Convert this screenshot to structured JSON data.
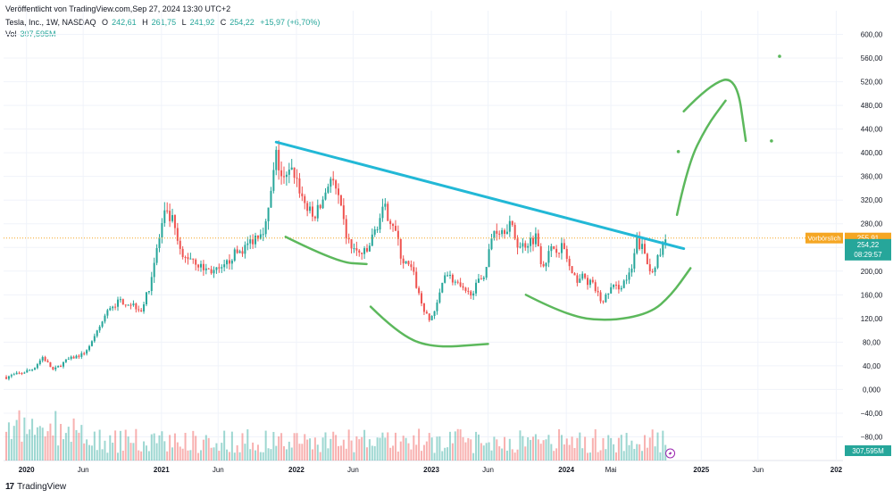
{
  "header": {
    "published": "Veröffentlicht von TradingView.com,Sep 27, 2024 13:30 UTC+2",
    "symbol": "Tesla, Inc., 1W, NASDAQ",
    "o_label": "O",
    "o_value": "242,61",
    "h_label": "H",
    "h_value": "261,75",
    "l_label": "L",
    "l_value": "241,92",
    "c_label": "C",
    "c_value": "254,22",
    "change": "+15,97 (+6,70%)",
    "vol_label": "Vol",
    "vol_value": "307,595M"
  },
  "footer": {
    "brand": "TradingView",
    "logo_glyph": "17"
  },
  "colors": {
    "up": "#26a69a",
    "down": "#ef5350",
    "trendline": "#22b8d6",
    "drawing": "#5cb85c",
    "prevclose": "#f5a623"
  },
  "chart_data": {
    "type": "candlestick",
    "title": "Tesla, Inc., 1W, NASDAQ",
    "y_ticks": [
      "600,00",
      "560,00",
      "520,00",
      "480,00",
      "440,00",
      "400,00",
      "360,00",
      "320,00",
      "280,00",
      "240,00",
      "200,00",
      "160,00",
      "120,00",
      "80,00",
      "40,00",
      "0,000",
      "−40,00",
      "−80,00"
    ],
    "y_tick_values": [
      600,
      560,
      520,
      480,
      440,
      400,
      360,
      320,
      280,
      240,
      200,
      160,
      120,
      80,
      40,
      0,
      -40,
      -80
    ],
    "ylim": [
      -120,
      640
    ],
    "x_ticks": [
      "2020",
      "Jun",
      "2021",
      "Jun",
      "2022",
      "Jun",
      "2023",
      "Jun",
      "2024",
      "Mai",
      "2025",
      "Jun",
      "202"
    ],
    "x_tick_years": [
      2020.0,
      2020.42,
      2021.0,
      2021.42,
      2022.0,
      2022.42,
      2023.0,
      2023.42,
      2024.0,
      2024.33,
      2025.0,
      2025.42,
      2026.0
    ],
    "xlim": [
      2019.83,
      2026.05
    ],
    "price_path": [
      [
        2019.85,
        21
      ],
      [
        2019.95,
        27
      ],
      [
        2020.05,
        35
      ],
      [
        2020.12,
        55
      ],
      [
        2020.2,
        32
      ],
      [
        2020.3,
        50
      ],
      [
        2020.42,
        60
      ],
      [
        2020.5,
        85
      ],
      [
        2020.55,
        110
      ],
      [
        2020.62,
        140
      ],
      [
        2020.7,
        150
      ],
      [
        2020.78,
        145
      ],
      [
        2020.85,
        135
      ],
      [
        2020.9,
        165
      ],
      [
        2020.96,
        230
      ],
      [
        2021.02,
        295
      ],
      [
        2021.08,
        285
      ],
      [
        2021.15,
        220
      ],
      [
        2021.22,
        225
      ],
      [
        2021.3,
        205
      ],
      [
        2021.38,
        200
      ],
      [
        2021.45,
        200
      ],
      [
        2021.52,
        225
      ],
      [
        2021.62,
        240
      ],
      [
        2021.7,
        260
      ],
      [
        2021.78,
        280
      ],
      [
        2021.85,
        395
      ],
      [
        2021.9,
        350
      ],
      [
        2021.98,
        370
      ],
      [
        2022.05,
        320
      ],
      [
        2022.12,
        290
      ],
      [
        2022.18,
        310
      ],
      [
        2022.25,
        360
      ],
      [
        2022.3,
        330
      ],
      [
        2022.38,
        250
      ],
      [
        2022.45,
        230
      ],
      [
        2022.52,
        230
      ],
      [
        2022.6,
        280
      ],
      [
        2022.65,
        305
      ],
      [
        2022.72,
        280
      ],
      [
        2022.78,
        220
      ],
      [
        2022.86,
        200
      ],
      [
        2022.92,
        150
      ],
      [
        2022.98,
        115
      ],
      [
        2023.04,
        140
      ],
      [
        2023.1,
        200
      ],
      [
        2023.18,
        180
      ],
      [
        2023.26,
        160
      ],
      [
        2023.32,
        170
      ],
      [
        2023.4,
        200
      ],
      [
        2023.46,
        270
      ],
      [
        2023.52,
        270
      ],
      [
        2023.58,
        280
      ],
      [
        2023.65,
        240
      ],
      [
        2023.72,
        250
      ],
      [
        2023.78,
        260
      ],
      [
        2023.82,
        210
      ],
      [
        2023.9,
        240
      ],
      [
        2023.98,
        240
      ],
      [
        2024.05,
        185
      ],
      [
        2024.12,
        190
      ],
      [
        2024.2,
        175
      ],
      [
        2024.27,
        145
      ],
      [
        2024.32,
        170
      ],
      [
        2024.4,
        175
      ],
      [
        2024.48,
        195
      ],
      [
        2024.52,
        250
      ],
      [
        2024.56,
        240
      ],
      [
        2024.62,
        200
      ],
      [
        2024.68,
        220
      ],
      [
        2024.74,
        254
      ]
    ],
    "last_price": 254.22,
    "last_price_label": "254,22",
    "countdown": "08:29:57",
    "prev_close": 255.91,
    "prev_close_label": "Vorbörslich",
    "prev_close_value": "255,91",
    "volume_label": "307,595M",
    "trendline": [
      [
        2021.85,
        418
      ],
      [
        2024.87,
        238
      ]
    ],
    "annotations": [
      {
        "type": "freehand",
        "points": [
          [
            2021.92,
            258
          ],
          [
            2022.3,
            215
          ],
          [
            2022.52,
            212
          ]
        ]
      },
      {
        "type": "freehand",
        "points": [
          [
            2022.55,
            140
          ],
          [
            2022.75,
            95
          ],
          [
            2023.0,
            70
          ],
          [
            2023.42,
            77
          ]
        ]
      },
      {
        "type": "freehand",
        "points": [
          [
            2023.7,
            160
          ],
          [
            2024.0,
            125
          ],
          [
            2024.3,
            115
          ],
          [
            2024.62,
            128
          ],
          [
            2024.78,
            160
          ],
          [
            2024.92,
            205
          ]
        ]
      },
      {
        "type": "freehand",
        "points": [
          [
            2024.82,
            295
          ],
          [
            2024.9,
            380
          ],
          [
            2025.04,
            445
          ],
          [
            2025.18,
            488
          ]
        ]
      },
      {
        "type": "freehand",
        "points": [
          [
            2024.87,
            470
          ],
          [
            2025.06,
            515
          ],
          [
            2025.26,
            530
          ],
          [
            2025.33,
            420
          ]
        ]
      },
      {
        "type": "dot",
        "points": [
          [
            2024.83,
            402
          ]
        ]
      },
      {
        "type": "dot",
        "points": [
          [
            2025.52,
            420
          ]
        ]
      },
      {
        "type": "dot",
        "points": [
          [
            2025.58,
            563
          ]
        ]
      }
    ]
  }
}
